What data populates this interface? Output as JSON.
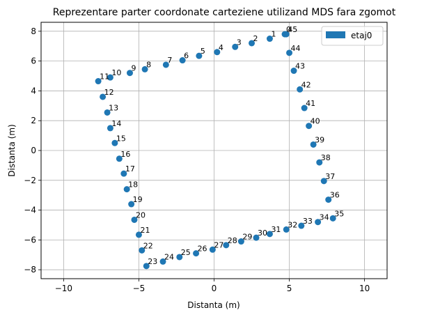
{
  "chart_data": {
    "type": "scatter",
    "title": "Reprezentare parter coordonate carteziene utilizand MDS fara zgomot",
    "xlabel": "Distanta (m)",
    "ylabel": "Distanta (m)",
    "xlim": [
      -11.5,
      11.5
    ],
    "ylim": [
      -8.6,
      8.6
    ],
    "xticks": [
      -10,
      -5,
      0,
      5,
      10
    ],
    "yticks": [
      -8,
      -6,
      -4,
      -2,
      0,
      2,
      4,
      6,
      8
    ],
    "grid": true,
    "legend_position": "top-right",
    "point_color": "#1f77b4",
    "series": [
      {
        "name": "etaj0",
        "points": [
          {
            "label": "0",
            "x": 4.7,
            "y": 7.8
          },
          {
            "label": "1",
            "x": 3.7,
            "y": 7.5
          },
          {
            "label": "2",
            "x": 2.5,
            "y": 7.2
          },
          {
            "label": "3",
            "x": 1.4,
            "y": 6.95
          },
          {
            "label": "4",
            "x": 0.2,
            "y": 6.6
          },
          {
            "label": "5",
            "x": -1.0,
            "y": 6.35
          },
          {
            "label": "6",
            "x": -2.1,
            "y": 6.05
          },
          {
            "label": "7",
            "x": -3.2,
            "y": 5.75
          },
          {
            "label": "8",
            "x": -4.6,
            "y": 5.45
          },
          {
            "label": "9",
            "x": -5.6,
            "y": 5.2
          },
          {
            "label": "10",
            "x": -6.9,
            "y": 4.9
          },
          {
            "label": "11",
            "x": -7.7,
            "y": 4.65
          },
          {
            "label": "12",
            "x": -7.4,
            "y": 3.6
          },
          {
            "label": "13",
            "x": -7.1,
            "y": 2.55
          },
          {
            "label": "14",
            "x": -6.9,
            "y": 1.5
          },
          {
            "label": "15",
            "x": -6.6,
            "y": 0.5
          },
          {
            "label": "16",
            "x": -6.3,
            "y": -0.55
          },
          {
            "label": "17",
            "x": -6.0,
            "y": -1.55
          },
          {
            "label": "18",
            "x": -5.8,
            "y": -2.6
          },
          {
            "label": "19",
            "x": -5.5,
            "y": -3.6
          },
          {
            "label": "20",
            "x": -5.3,
            "y": -4.65
          },
          {
            "label": "21",
            "x": -5.0,
            "y": -5.65
          },
          {
            "label": "22",
            "x": -4.8,
            "y": -6.7
          },
          {
            "label": "23",
            "x": -4.5,
            "y": -7.75
          },
          {
            "label": "24",
            "x": -3.4,
            "y": -7.45
          },
          {
            "label": "25",
            "x": -2.3,
            "y": -7.15
          },
          {
            "label": "26",
            "x": -1.2,
            "y": -6.9
          },
          {
            "label": "27",
            "x": -0.1,
            "y": -6.65
          },
          {
            "label": "28",
            "x": 0.8,
            "y": -6.35
          },
          {
            "label": "29",
            "x": 1.8,
            "y": -6.1
          },
          {
            "label": "30",
            "x": 2.8,
            "y": -5.85
          },
          {
            "label": "31",
            "x": 3.7,
            "y": -5.6
          },
          {
            "label": "32",
            "x": 4.8,
            "y": -5.3
          },
          {
            "label": "33",
            "x": 5.8,
            "y": -5.05
          },
          {
            "label": "34",
            "x": 6.9,
            "y": -4.8
          },
          {
            "label": "35",
            "x": 7.9,
            "y": -4.55
          },
          {
            "label": "36",
            "x": 7.6,
            "y": -3.3
          },
          {
            "label": "37",
            "x": 7.3,
            "y": -2.05
          },
          {
            "label": "38",
            "x": 7.0,
            "y": -0.8
          },
          {
            "label": "39",
            "x": 6.6,
            "y": 0.4
          },
          {
            "label": "40",
            "x": 6.3,
            "y": 1.65
          },
          {
            "label": "41",
            "x": 6.0,
            "y": 2.85
          },
          {
            "label": "42",
            "x": 5.7,
            "y": 4.1
          },
          {
            "label": "43",
            "x": 5.3,
            "y": 5.35
          },
          {
            "label": "44",
            "x": 5.0,
            "y": 6.55
          },
          {
            "label": "45",
            "x": 4.8,
            "y": 7.8
          }
        ]
      }
    ]
  }
}
